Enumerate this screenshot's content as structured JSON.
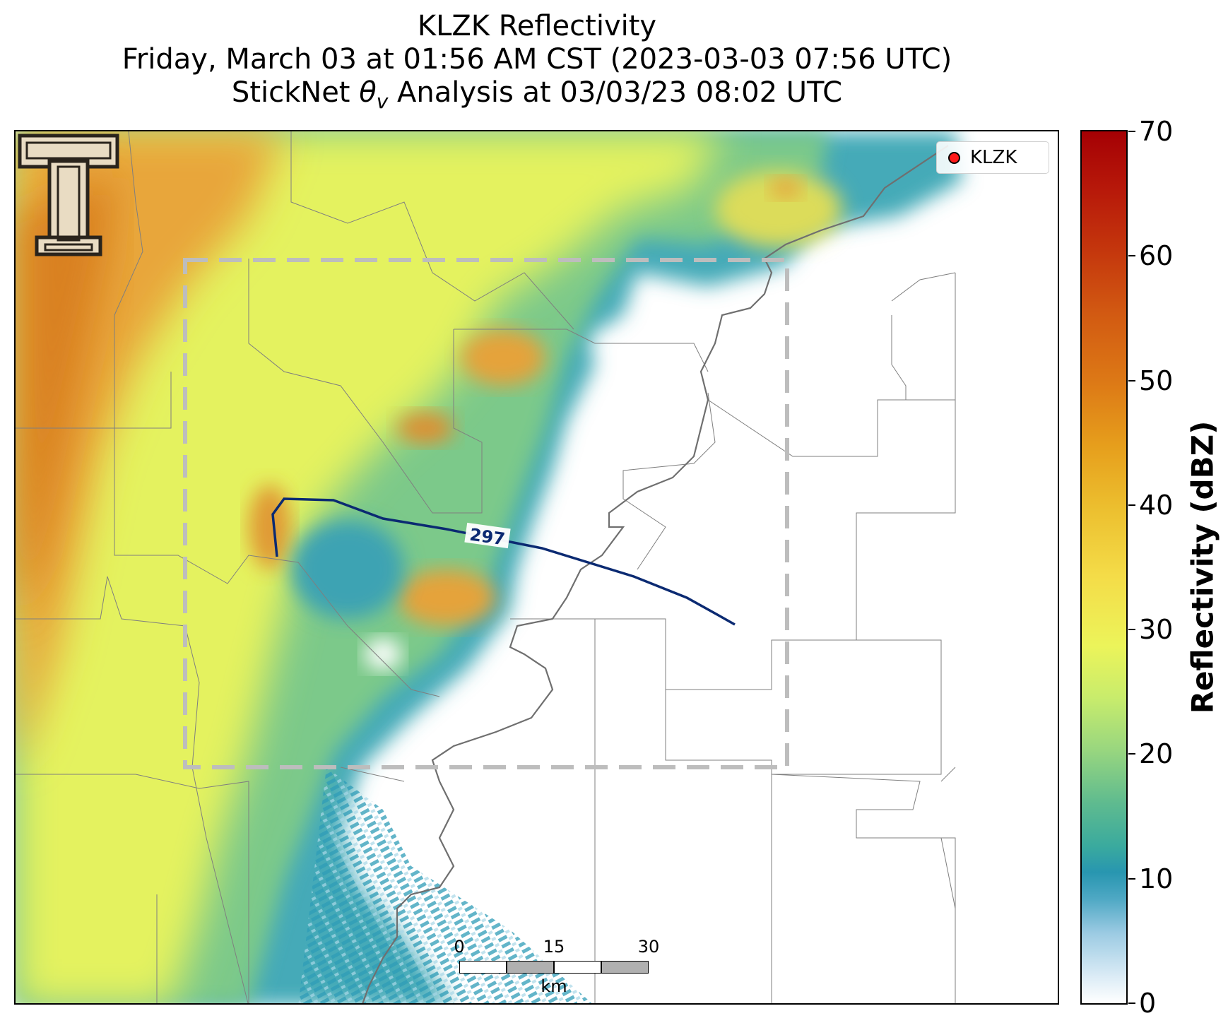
{
  "title": {
    "line1": "KLZK Reflectivity",
    "line2": "Friday, March 03 at 01:56 AM CST (2023-03-03 07:56 UTC)",
    "line3_prefix": "StickNet ",
    "line3_symbol": "θ",
    "line3_sub": "v",
    "line3_suffix": " Analysis at 03/03/23 08:02 UTC"
  },
  "legend": {
    "marker_color": "#ff1a1a",
    "label": "KLZK"
  },
  "contour": {
    "label": "297",
    "color": "#0b2a72"
  },
  "analysis_box": {
    "color": "#bdbdbd",
    "style": "dashed"
  },
  "scalebar": {
    "ticks": [
      "0",
      "15",
      "30"
    ],
    "unit": "km"
  },
  "colorbar": {
    "title": "Reflectivity (dBZ)",
    "min": 0,
    "max": 70,
    "ticks": [
      "0",
      "10",
      "20",
      "30",
      "40",
      "50",
      "60",
      "70"
    ]
  },
  "logo": {
    "icon": "double-t-logo-icon"
  }
}
